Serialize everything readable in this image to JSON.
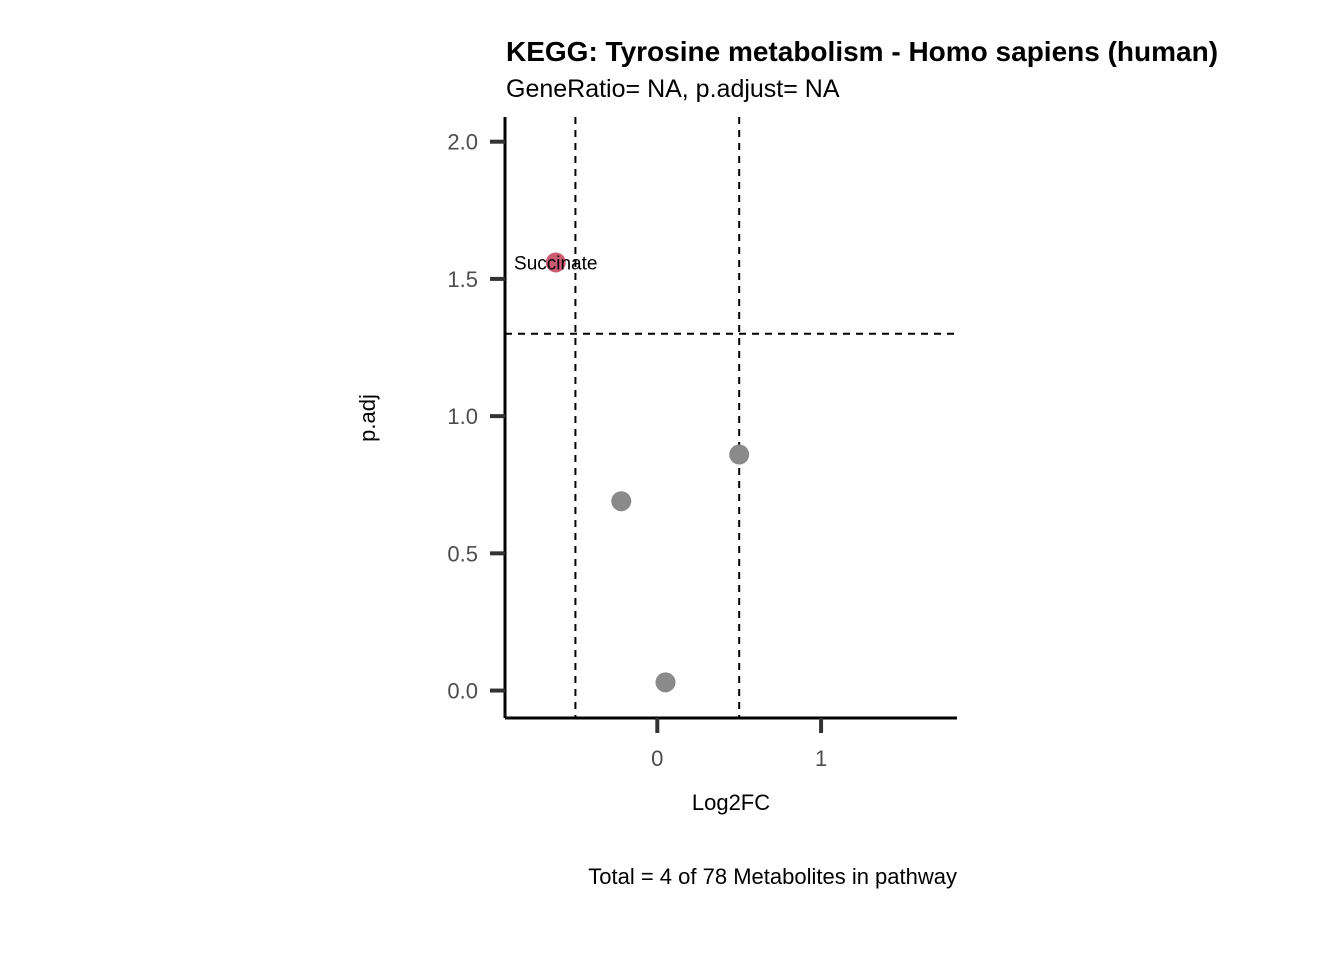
{
  "chart_data": {
    "type": "scatter",
    "title": "KEGG: Tyrosine metabolism - Homo sapiens (human)",
    "subtitle": "GeneRatio= NA, p.adjust= NA",
    "xlabel": "Log2FC",
    "ylabel": "p.adj",
    "caption": "Total = 4 of 78 Metabolites in pathway",
    "xlim": [
      -0.93,
      1.83
    ],
    "ylim": [
      -0.1,
      2.09
    ],
    "xticks": [
      0,
      1
    ],
    "xtick_labels": [
      "0",
      "1"
    ],
    "yticks": [
      0.0,
      0.5,
      1.0,
      1.5,
      2.0
    ],
    "ytick_labels": [
      "0.0",
      "0.5",
      "1.0",
      "1.5",
      "2.0"
    ],
    "grid": false,
    "legend": "none",
    "reference_lines": {
      "vertical": [
        -0.5,
        0.5
      ],
      "horizontal": [
        1.3
      ],
      "style": "dashed",
      "color": "#000000"
    },
    "points": [
      {
        "x": -0.62,
        "y": 1.56,
        "color": "#cc5c72",
        "label": "Succinate"
      },
      {
        "x": -0.22,
        "y": 0.69,
        "color": "#8a8a8a",
        "label": ""
      },
      {
        "x": 0.5,
        "y": 0.86,
        "color": "#8a8a8a",
        "label": ""
      },
      {
        "x": 0.05,
        "y": 0.03,
        "color": "#8a8a8a",
        "label": ""
      }
    ]
  }
}
